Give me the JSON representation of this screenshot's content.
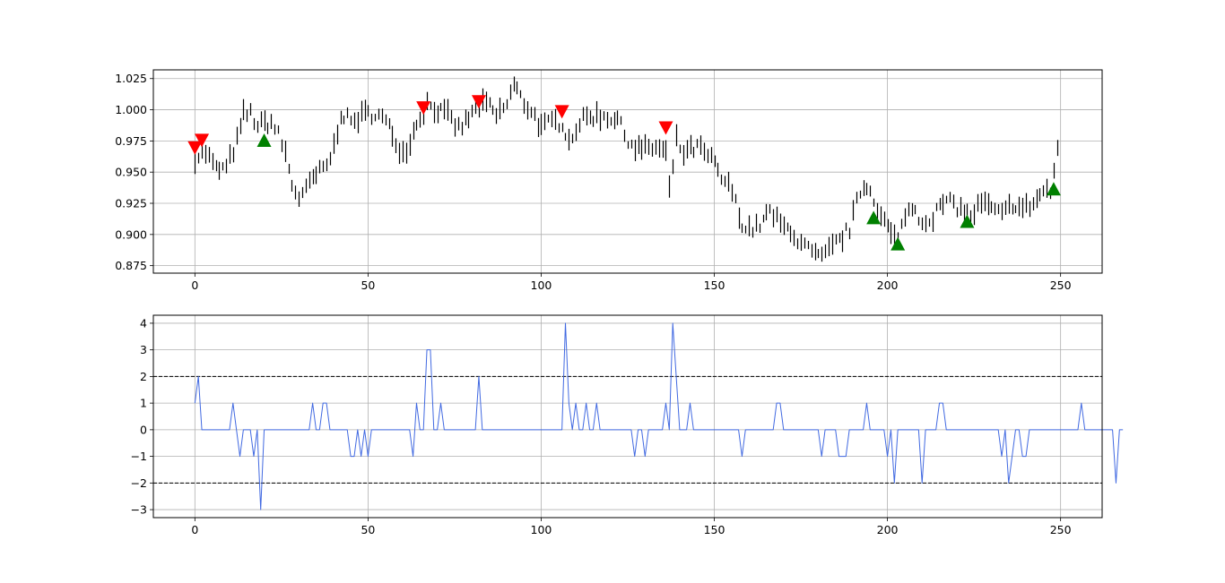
{
  "chart_data": [
    {
      "type": "ohlc",
      "title": "",
      "xlabel": "",
      "ylabel": "",
      "xlim": [
        -12,
        262
      ],
      "ylim": [
        0.869,
        1.032
      ],
      "xticks": [
        0,
        50,
        100,
        150,
        200,
        250
      ],
      "yticks": [
        0.875,
        0.9,
        0.925,
        0.95,
        0.975,
        1.0,
        1.025
      ],
      "ytick_labels": [
        "0.875",
        "0.900",
        "0.925",
        "0.950",
        "0.975",
        "1.000",
        "1.025"
      ],
      "grid": true,
      "bar_color": "#000000",
      "price_anchors": [
        [
          0,
          0.962
        ],
        [
          3,
          0.966
        ],
        [
          6,
          0.952
        ],
        [
          9,
          0.953
        ],
        [
          12,
          0.975
        ],
        [
          14,
          0.996
        ],
        [
          16,
          0.997
        ],
        [
          18,
          0.987
        ],
        [
          20,
          0.989
        ],
        [
          22,
          0.99
        ],
        [
          24,
          0.98
        ],
        [
          26,
          0.965
        ],
        [
          28,
          0.94
        ],
        [
          30,
          0.93
        ],
        [
          32,
          0.935
        ],
        [
          34,
          0.945
        ],
        [
          36,
          0.95
        ],
        [
          38,
          0.955
        ],
        [
          40,
          0.97
        ],
        [
          42,
          0.998
        ],
        [
          45,
          0.99
        ],
        [
          48,
          0.995
        ],
        [
          52,
          0.998
        ],
        [
          55,
          0.99
        ],
        [
          58,
          0.975
        ],
        [
          60,
          0.965
        ],
        [
          62,
          0.975
        ],
        [
          64,
          0.99
        ],
        [
          67,
          1.005
        ],
        [
          70,
          1.0
        ],
        [
          73,
          0.995
        ],
        [
          76,
          0.985
        ],
        [
          78,
          0.99
        ],
        [
          81,
          1.0
        ],
        [
          84,
          1.005
        ],
        [
          87,
          0.995
        ],
        [
          90,
          1.005
        ],
        [
          92,
          1.02
        ],
        [
          95,
          1.005
        ],
        [
          97,
          1.0
        ],
        [
          100,
          0.985
        ],
        [
          103,
          0.99
        ],
        [
          106,
          0.99
        ],
        [
          108,
          0.975
        ],
        [
          111,
          0.99
        ],
        [
          114,
          0.995
        ],
        [
          118,
          0.995
        ],
        [
          122,
          0.993
        ],
        [
          124,
          0.98
        ],
        [
          127,
          0.97
        ],
        [
          130,
          0.968
        ],
        [
          133,
          0.97
        ],
        [
          136,
          0.965
        ],
        [
          137,
          0.935
        ],
        [
          139,
          0.975
        ],
        [
          141,
          0.965
        ],
        [
          145,
          0.97
        ],
        [
          149,
          0.96
        ],
        [
          152,
          0.945
        ],
        [
          155,
          0.935
        ],
        [
          157,
          0.915
        ],
        [
          159,
          0.905
        ],
        [
          162,
          0.905
        ],
        [
          166,
          0.918
        ],
        [
          170,
          0.905
        ],
        [
          172,
          0.905
        ],
        [
          174,
          0.895
        ],
        [
          178,
          0.885
        ],
        [
          181,
          0.88
        ],
        [
          184,
          0.89
        ],
        [
          186,
          0.895
        ],
        [
          189,
          0.905
        ],
        [
          192,
          0.935
        ],
        [
          194,
          0.94
        ],
        [
          196,
          0.93
        ],
        [
          198,
          0.915
        ],
        [
          201,
          0.9
        ],
        [
          203,
          0.893
        ],
        [
          205,
          0.918
        ],
        [
          208,
          0.92
        ],
        [
          210,
          0.91
        ],
        [
          213,
          0.915
        ],
        [
          216,
          0.925
        ],
        [
          219,
          0.925
        ],
        [
          221,
          0.92
        ],
        [
          224,
          0.915
        ],
        [
          227,
          0.925
        ],
        [
          230,
          0.92
        ],
        [
          233,
          0.915
        ],
        [
          236,
          0.925
        ],
        [
          239,
          0.92
        ],
        [
          242,
          0.925
        ],
        [
          245,
          0.935
        ],
        [
          247,
          0.935
        ],
        [
          249,
          0.965
        ]
      ],
      "sell_markers": [
        {
          "x": 0,
          "y": 0.969
        },
        {
          "x": 2,
          "y": 0.975
        },
        {
          "x": 66,
          "y": 1.001
        },
        {
          "x": 82,
          "y": 1.006
        },
        {
          "x": 106,
          "y": 0.998
        },
        {
          "x": 136,
          "y": 0.985
        }
      ],
      "buy_markers": [
        {
          "x": 20,
          "y": 0.976
        },
        {
          "x": 196,
          "y": 0.914
        },
        {
          "x": 203,
          "y": 0.893
        },
        {
          "x": 223,
          "y": 0.911
        },
        {
          "x": 248,
          "y": 0.937
        }
      ],
      "sell_color": "#ff0000",
      "buy_color": "#008000"
    },
    {
      "type": "line",
      "title": "",
      "xlabel": "",
      "ylabel": "",
      "xlim": [
        -12,
        262
      ],
      "ylim": [
        -3.3,
        4.3
      ],
      "xticks": [
        0,
        50,
        100,
        150,
        200,
        250
      ],
      "yticks": [
        -3,
        -2,
        -1,
        0,
        1,
        2,
        3,
        4
      ],
      "ytick_labels": [
        "−3",
        "−2",
        "−1",
        "0",
        "1",
        "2",
        "3",
        "4"
      ],
      "grid": true,
      "line_color": "#4169e1",
      "threshold_lines": [
        2,
        -2
      ],
      "threshold_color": "#000000",
      "values": [
        1,
        2,
        0,
        0,
        0,
        0,
        0,
        0,
        0,
        0,
        0,
        1,
        0,
        -1,
        0,
        0,
        0,
        -1,
        0,
        -3,
        0,
        0,
        0,
        0,
        0,
        0,
        0,
        0,
        0,
        0,
        0,
        0,
        0,
        0,
        1,
        0,
        0,
        1,
        1,
        0,
        0,
        0,
        0,
        0,
        0,
        -1,
        -1,
        0,
        -1,
        0,
        -1,
        0,
        0,
        0,
        0,
        0,
        0,
        0,
        0,
        0,
        0,
        0,
        0,
        -1,
        1,
        0,
        0,
        3,
        3,
        0,
        0,
        1,
        0,
        0,
        0,
        0,
        0,
        0,
        0,
        0,
        0,
        0,
        2,
        0,
        0,
        0,
        0,
        0,
        0,
        0,
        0,
        0,
        0,
        0,
        0,
        0,
        0,
        0,
        0,
        0,
        0,
        0,
        0,
        0,
        0,
        0,
        0,
        4,
        1,
        0,
        1,
        0,
        0,
        1,
        0,
        0,
        1,
        0,
        0,
        0,
        0,
        0,
        0,
        0,
        0,
        0,
        0,
        -1,
        0,
        0,
        -1,
        0,
        0,
        0,
        0,
        0,
        1,
        0,
        4,
        2,
        0,
        0,
        0,
        1,
        0,
        0,
        0,
        0,
        0,
        0,
        0,
        0,
        0,
        0,
        0,
        0,
        0,
        0,
        -1,
        0,
        0,
        0,
        0,
        0,
        0,
        0,
        0,
        0,
        1,
        1,
        0,
        0,
        0,
        0,
        0,
        0,
        0,
        0,
        0,
        0,
        0,
        -1,
        0,
        0,
        0,
        0,
        -1,
        -1,
        -1,
        0,
        0,
        0,
        0,
        0,
        1,
        0,
        0,
        0,
        0,
        0,
        -1,
        0,
        -2,
        0,
        0,
        0,
        0,
        0,
        0,
        0,
        -2,
        0,
        0,
        0,
        0,
        1,
        1,
        0,
        0,
        0,
        0,
        0,
        0,
        0,
        0,
        0,
        0,
        0,
        0,
        0,
        0,
        0,
        0,
        -1,
        0,
        -2,
        -1,
        0,
        0,
        -1,
        -1,
        0,
        0,
        0,
        0,
        0,
        0,
        0,
        0,
        0,
        0,
        0,
        0,
        0,
        0,
        0,
        1,
        0,
        0,
        0,
        0,
        0,
        0,
        0,
        0,
        0,
        -2,
        0,
        0
      ]
    }
  ]
}
